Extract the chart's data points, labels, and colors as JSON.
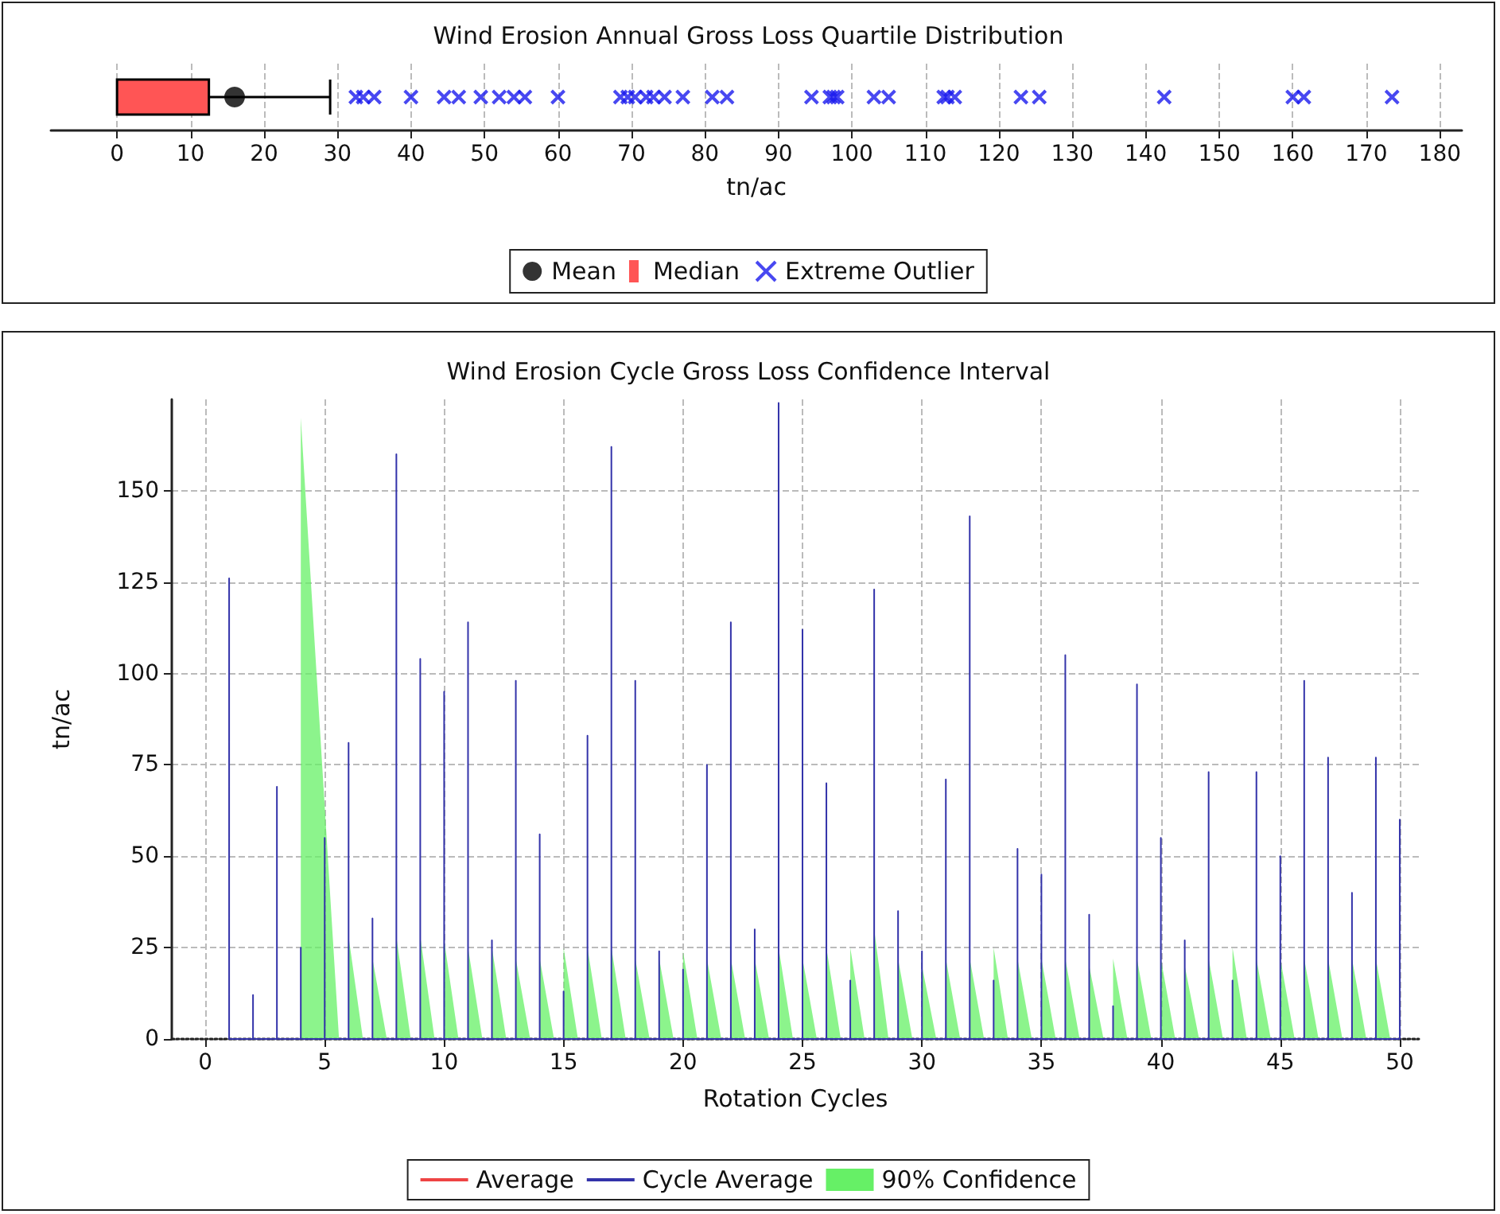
{
  "chart_data": [
    {
      "type": "box",
      "title": "Wind Erosion Annual Gross Loss Quartile Distribution",
      "xlabel": "tn/ac",
      "orientation": "horizontal",
      "categories": [
        null
      ],
      "legend": "bottom",
      "grid": "x",
      "xlim": [
        -9,
        183
      ],
      "xticks": [
        0,
        10,
        20,
        30,
        40,
        50,
        60,
        70,
        80,
        90,
        100,
        110,
        120,
        130,
        140,
        150,
        160,
        170,
        180
      ],
      "series": [
        {
          "name": "Mean",
          "type": "scatter",
          "marker": "circle",
          "color": "#000000",
          "x": [
            null
          ],
          "values": [
            16
          ]
        },
        {
          "name": "Median",
          "type": "box",
          "color": "#ff5555",
          "boxes": [
            {
              "low": 0,
              "q1": 0,
              "median": 0,
              "q3": 12.5,
              "high": 29
            }
          ]
        },
        {
          "name": "Extreme Outlier",
          "type": "scatter",
          "marker": "cross",
          "color": "#1a1aee",
          "x": [
            null,
            null,
            null,
            null,
            null,
            null,
            null,
            null,
            null,
            null,
            null,
            null,
            null,
            null,
            null,
            null,
            null,
            null,
            null,
            null,
            null,
            null,
            null,
            null,
            null,
            null,
            null,
            null,
            null,
            null,
            null,
            null,
            null,
            null,
            null
          ],
          "values": [
            32.5,
            33.5,
            35,
            40,
            44.5,
            46.5,
            49.5,
            52,
            54,
            55.5,
            60,
            68.5,
            69.5,
            70.5,
            72,
            73,
            74.5,
            77,
            81,
            83,
            94.5,
            97,
            97.5,
            98,
            103,
            105,
            112.5,
            113,
            114,
            123,
            125.5,
            142.5,
            160,
            161.5,
            173.5
          ]
        }
      ]
    },
    {
      "type": "line",
      "title": "Wind Erosion Cycle Gross Loss Confidence Interval",
      "xlabel": "Rotation Cycles",
      "ylabel": "tn/ac",
      "legend": "bottom",
      "grid": true,
      "marker": "none",
      "xlim": [
        -1.4,
        50.8
      ],
      "xticks": [
        0,
        5,
        10,
        15,
        20,
        25,
        30,
        35,
        40,
        45,
        50
      ],
      "ylim": [
        0,
        175
      ],
      "yticks": [
        0,
        25,
        50,
        75,
        100,
        125,
        150
      ],
      "series": [
        {
          "name": "Average",
          "type": "line",
          "color": "#ee4444"
        },
        {
          "name": "Cycle Average",
          "type": "line",
          "color": "#3333aa",
          "x": [
            1,
            1,
            1,
            2,
            2,
            2,
            3,
            3,
            3,
            4,
            4,
            4,
            5,
            5,
            5,
            6,
            6,
            6,
            7,
            7,
            7,
            8,
            8,
            8,
            9,
            9,
            9,
            10,
            10,
            10,
            11,
            11,
            11,
            12,
            12,
            12,
            13,
            13,
            13,
            14,
            14,
            14,
            15,
            15,
            15,
            16,
            16,
            16,
            17,
            17,
            17,
            18,
            18,
            18,
            19,
            19,
            19,
            20,
            20,
            20,
            21,
            21,
            21,
            22,
            22,
            22,
            23,
            23,
            23,
            24,
            24,
            24,
            25,
            25,
            25,
            26,
            26,
            26,
            27,
            27,
            27,
            28,
            28,
            28,
            29,
            29,
            29,
            30,
            30,
            30,
            31,
            31,
            31,
            32,
            32,
            32,
            33,
            33,
            33,
            34,
            34,
            34,
            35,
            35,
            35,
            36,
            36,
            36,
            37,
            37,
            37,
            38,
            38,
            38,
            39,
            39,
            39,
            40,
            40,
            40,
            41,
            41,
            41,
            42,
            42,
            42,
            43,
            43,
            43,
            44,
            44,
            44,
            45,
            45,
            45,
            46,
            46,
            46,
            47,
            47,
            47,
            48,
            48,
            48,
            49,
            49,
            49,
            50,
            50,
            50
          ],
          "values": [
            0,
            126,
            0,
            0,
            12,
            0,
            0,
            69,
            0,
            0,
            25,
            0,
            0,
            55,
            0,
            0,
            81,
            0,
            0,
            33,
            0,
            0,
            160,
            0,
            0,
            104,
            0,
            0,
            95,
            0,
            0,
            114,
            0,
            0,
            27,
            0,
            0,
            98,
            0,
            0,
            56,
            0,
            0,
            13,
            0,
            0,
            83,
            0,
            0,
            162,
            0,
            0,
            98,
            0,
            0,
            24,
            0,
            0,
            19,
            0,
            0,
            75,
            0,
            0,
            114,
            0,
            0,
            30,
            0,
            0,
            174,
            0,
            0,
            112,
            0,
            0,
            70,
            0,
            0,
            16,
            0,
            0,
            123,
            0,
            0,
            35,
            0,
            0,
            24,
            0,
            0,
            71,
            0,
            0,
            143,
            0,
            0,
            16,
            0,
            0,
            52,
            0,
            0,
            45,
            0,
            0,
            105,
            0,
            0,
            34,
            0,
            0,
            9,
            0,
            0,
            97,
            0,
            0,
            55,
            0,
            0,
            27,
            0,
            0,
            73,
            0,
            0,
            16,
            0,
            0,
            73,
            0,
            0,
            50,
            0,
            0,
            98,
            0,
            0,
            77,
            0,
            0,
            40,
            0,
            0,
            77,
            0,
            0,
            60,
            0
          ]
        },
        {
          "name": "90% Confidence",
          "type": "area",
          "color": "#66f066",
          "x": [
            4,
            4,
            5.6,
            6,
            6,
            6.6,
            7,
            7,
            7.6,
            8,
            8,
            8.6,
            9,
            9,
            9.6,
            10,
            10,
            10.6,
            11,
            11,
            11.6,
            12,
            12,
            12.6,
            13,
            13,
            13.6,
            14,
            14,
            14.6,
            15,
            15,
            15.6,
            16,
            16,
            16.6,
            17,
            17,
            17.6,
            18,
            18,
            18.6,
            19,
            19,
            19.6,
            20,
            20,
            20.6,
            21,
            21,
            21.6,
            22,
            22,
            22.6,
            23,
            23,
            23.6,
            24,
            24,
            24.6,
            25,
            25,
            25.6,
            26,
            26,
            26.6,
            27,
            27,
            27.6,
            28,
            28,
            28.6,
            29,
            29,
            29.6,
            30,
            30,
            30.6,
            31,
            31,
            31.6,
            32,
            32,
            32.6,
            33,
            33,
            33.6,
            34,
            34,
            34.6,
            35,
            35,
            35.6,
            36,
            36,
            36.6,
            37,
            37,
            37.6,
            38,
            38,
            38.6,
            39,
            39,
            39.6,
            40,
            40,
            40.6,
            41,
            41,
            41.6,
            42,
            42,
            42.6,
            43,
            43,
            43.6,
            44,
            44,
            44.6,
            45,
            45,
            45.6,
            46,
            46,
            46.6,
            47,
            47,
            47.6,
            48,
            48,
            48.6,
            49,
            49,
            49.6
          ],
          "values": [
            0,
            170,
            0,
            0,
            28,
            0,
            0,
            22,
            0,
            0,
            28,
            0,
            0,
            28,
            0,
            0,
            27,
            0,
            0,
            25,
            0,
            0,
            25,
            0,
            0,
            22,
            0,
            0,
            22,
            0,
            0,
            25,
            0,
            0,
            25,
            0,
            0,
            25,
            0,
            0,
            22,
            0,
            0,
            22,
            0,
            0,
            24,
            0,
            0,
            22,
            0,
            0,
            22,
            0,
            0,
            22,
            0,
            0,
            25,
            0,
            0,
            22,
            0,
            0,
            25,
            0,
            0,
            25,
            0,
            0,
            30,
            0,
            0,
            22,
            0,
            0,
            20,
            0,
            0,
            22,
            0,
            0,
            22,
            0,
            0,
            25,
            0,
            0,
            22,
            0,
            0,
            22,
            0,
            0,
            22,
            0,
            0,
            20,
            0,
            0,
            22,
            0,
            0,
            22,
            0,
            0,
            22,
            0,
            0,
            20,
            0,
            0,
            22,
            0,
            0,
            25,
            0,
            0,
            22,
            0,
            0,
            22,
            0,
            0,
            22,
            0,
            0,
            22,
            0,
            0,
            22,
            0,
            0,
            22,
            0
          ]
        }
      ]
    }
  ]
}
